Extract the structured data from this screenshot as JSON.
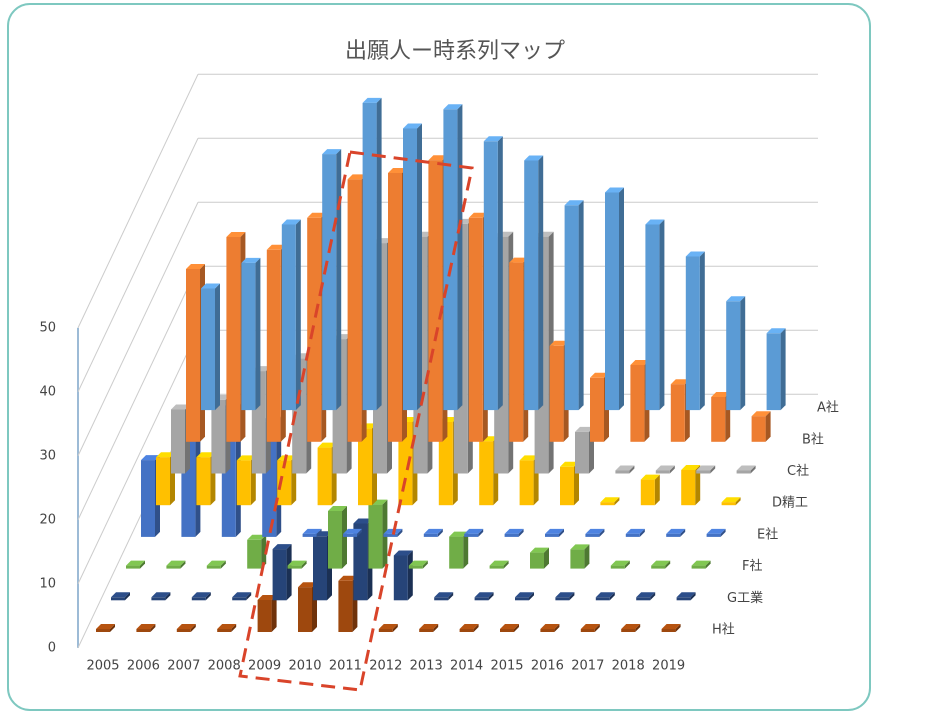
{
  "chart_data": {
    "type": "bar3d",
    "title": "出願人ー時系列マップ",
    "categories": [
      "2005",
      "2006",
      "2007",
      "2008",
      "2009",
      "2010",
      "2011",
      "2012",
      "2013",
      "2014",
      "2015",
      "2016",
      "2017",
      "2018",
      "2019"
    ],
    "ylim": [
      0,
      50
    ],
    "yticks": [
      0,
      10,
      20,
      30,
      40,
      50
    ],
    "grid": true,
    "series": [
      {
        "name": "A社",
        "color": "#5b9bd5",
        "values": [
          19,
          23,
          29,
          40,
          48,
          44,
          47,
          42,
          39,
          32,
          34,
          29,
          24,
          17,
          12
        ]
      },
      {
        "name": "B社",
        "color": "#ed7d31",
        "values": [
          27,
          32,
          30,
          35,
          41,
          42,
          44,
          35,
          28,
          15,
          10,
          12,
          9,
          7,
          4
        ]
      },
      {
        "name": "C社",
        "color": "#a5a5a5",
        "values": [
          10,
          11.5,
          16,
          18,
          21,
          36,
          37,
          39,
          37,
          37,
          6.5,
          0,
          0,
          0,
          0
        ]
      },
      {
        "name": "D精工",
        "color": "#ffc000",
        "values": [
          7.5,
          7.5,
          7,
          7,
          9,
          12,
          13,
          13,
          10,
          7,
          6,
          0,
          4,
          5.5,
          0
        ]
      },
      {
        "name": "E社",
        "color": "#4472c4",
        "values": [
          12,
          17,
          20,
          18,
          0,
          0,
          0,
          0,
          0,
          0,
          0,
          0,
          0,
          0,
          0
        ]
      },
      {
        "name": "F社",
        "color": "#70ad47",
        "values": [
          0,
          0,
          0,
          4.5,
          0,
          9,
          10,
          0,
          5,
          0,
          2.5,
          3,
          0,
          0,
          0
        ]
      },
      {
        "name": "G工業",
        "color": "#264478",
        "values": [
          0,
          0,
          0,
          0,
          8,
          10,
          12,
          7,
          0,
          0,
          0,
          0,
          0,
          0,
          0
        ]
      },
      {
        "name": "H社",
        "color": "#9e480e",
        "values": [
          0,
          0,
          0,
          0,
          5,
          7,
          8,
          0,
          0,
          0,
          0,
          0,
          0,
          0,
          0
        ]
      }
    ]
  }
}
